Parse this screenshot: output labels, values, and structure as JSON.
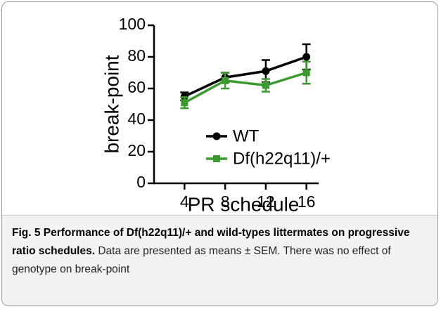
{
  "chart_data": {
    "type": "line",
    "x_label": "PR schedule",
    "y_label": "break-point",
    "x": [
      4,
      8,
      12,
      16
    ],
    "series": [
      {
        "name": "WT",
        "color": "#000000",
        "marker": "circle",
        "values": [
          55,
          67,
          71,
          80
        ],
        "errors": [
          2.5,
          3,
          7,
          8
        ]
      },
      {
        "name": "Df(h22q11)/+",
        "color": "#3a9a2e",
        "marker": "square",
        "values": [
          51,
          65,
          62,
          70
        ],
        "errors": [
          3.5,
          5,
          4,
          7
        ]
      }
    ],
    "xlim": [
      1,
      17.2
    ],
    "xticks": [
      4,
      8,
      12,
      16
    ],
    "ylim": [
      0,
      100
    ],
    "yticks": [
      0,
      20,
      40,
      60,
      80,
      100
    ],
    "legend": "lower-left"
  },
  "caption": {
    "bold": "Fig. 5 Performance of Df(h22q11)/+ and wild-types littermates on progressive ratio schedules.",
    "text": "Data are presented as means ± SEM. There was no effect of genotype on break-point"
  }
}
